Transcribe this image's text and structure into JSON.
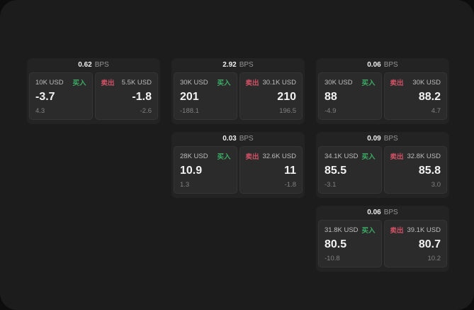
{
  "labels": {
    "bps": "BPS",
    "buy": "买入",
    "sell": "卖出"
  },
  "colors": {
    "page_bg": "#0d0d0d",
    "canvas_bg": "#1c1c1c",
    "card_bg": "#232323",
    "panel_bg": "#2b2b2b",
    "buy_green": "#3dab66",
    "sell_red": "#cf5165",
    "price_text": "#f2f2f2",
    "muted_text": "#818181"
  },
  "cards": [
    {
      "bps": "0.62",
      "buy": {
        "amount": "10K USD",
        "price": "-3.7",
        "delta": "4.3"
      },
      "sell": {
        "amount": "5.5K USD",
        "price": "-1.8",
        "delta": "-2.6"
      }
    },
    {
      "bps": "2.92",
      "buy": {
        "amount": "30K USD",
        "price": "201",
        "delta": "-188.1"
      },
      "sell": {
        "amount": "30.1K USD",
        "price": "210",
        "delta": "196.5"
      }
    },
    {
      "bps": "0.06",
      "buy": {
        "amount": "30K USD",
        "price": "88",
        "delta": "-4.9"
      },
      "sell": {
        "amount": "30K USD",
        "price": "88.2",
        "delta": "4.7"
      }
    },
    {
      "bps": "0.03",
      "buy": {
        "amount": "28K USD",
        "price": "10.9",
        "delta": "1.3"
      },
      "sell": {
        "amount": "32.6K USD",
        "price": "11",
        "delta": "-1.8"
      }
    },
    {
      "bps": "0.09",
      "buy": {
        "amount": "34.1K USD",
        "price": "85.5",
        "delta": "-3.1"
      },
      "sell": {
        "amount": "32.8K USD",
        "price": "85.8",
        "delta": "3.0"
      }
    },
    {
      "bps": "0.06",
      "buy": {
        "amount": "31.8K USD",
        "price": "80.5",
        "delta": "-10.8"
      },
      "sell": {
        "amount": "39.1K USD",
        "price": "80.7",
        "delta": "10.2"
      }
    }
  ]
}
